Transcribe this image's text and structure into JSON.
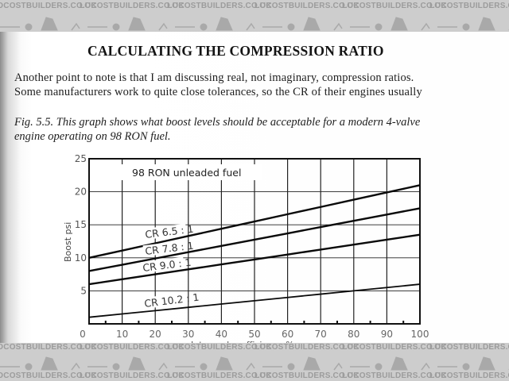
{
  "watermark": {
    "text": "LOCOSTBUILDERS.CO.UK",
    "color": "#9c9c9c",
    "band_color": "#cdcdcd"
  },
  "page": {
    "heading": "CALCULATING THE COMPRESSION RATIO",
    "paragraph_lines": [
      "Another point to note is that I am discussing real, not imaginary, compression ratios.",
      "Some manufacturers work to quite close tolerances, so the CR of their engines usually"
    ],
    "caption_lines": [
      "Fig. 5.5. This graph shows what boost levels should be acceptable for a modern 4-valve",
      "engine operating on 98 RON fuel."
    ]
  },
  "chart_data": {
    "type": "line",
    "title": "98 RON unleaded fuel",
    "xlabel": "Intercooler efficiency %",
    "ylabel": "Boost psi",
    "xlim": [
      0,
      100
    ],
    "ylim": [
      0,
      25
    ],
    "x_ticks": [
      0,
      10,
      20,
      30,
      40,
      50,
      60,
      70,
      80,
      90,
      100
    ],
    "x_tick_labels": [
      "0",
      "10",
      "20",
      "30",
      "40",
      "50",
      "60",
      "70",
      "80",
      "90",
      "100"
    ],
    "y_ticks": [
      5,
      10,
      15,
      20,
      25
    ],
    "y_tick_labels": [
      "5",
      "10",
      "15",
      "20",
      "25"
    ],
    "grid": true,
    "legend_position": "inline labels on lines",
    "x": [
      0,
      10,
      20,
      30,
      40,
      50,
      60,
      70,
      80,
      90,
      100
    ],
    "series": [
      {
        "name": "CR 6.5:1",
        "values": [
          10.0,
          11.1,
          12.2,
          13.3,
          14.4,
          15.5,
          16.6,
          17.7,
          18.8,
          19.9,
          21.0
        ]
      },
      {
        "name": "CR 7.8:1",
        "values": [
          8.0,
          8.95,
          9.9,
          10.85,
          11.8,
          12.75,
          13.7,
          14.65,
          15.6,
          16.55,
          17.5
        ]
      },
      {
        "name": "CR 9.0:1",
        "values": [
          6.0,
          6.75,
          7.5,
          8.25,
          9.0,
          9.75,
          10.5,
          11.25,
          12.0,
          12.75,
          13.5
        ]
      },
      {
        "name": "CR 10.2:1",
        "values": [
          1.0,
          1.5,
          2.0,
          2.5,
          3.0,
          3.5,
          4.0,
          4.5,
          5.0,
          5.5,
          6.0
        ]
      }
    ],
    "line_labels": [
      "CR 6.5:1",
      "CR 7.8:1",
      "CR 9.0:1",
      "CR 10.2:1"
    ]
  }
}
